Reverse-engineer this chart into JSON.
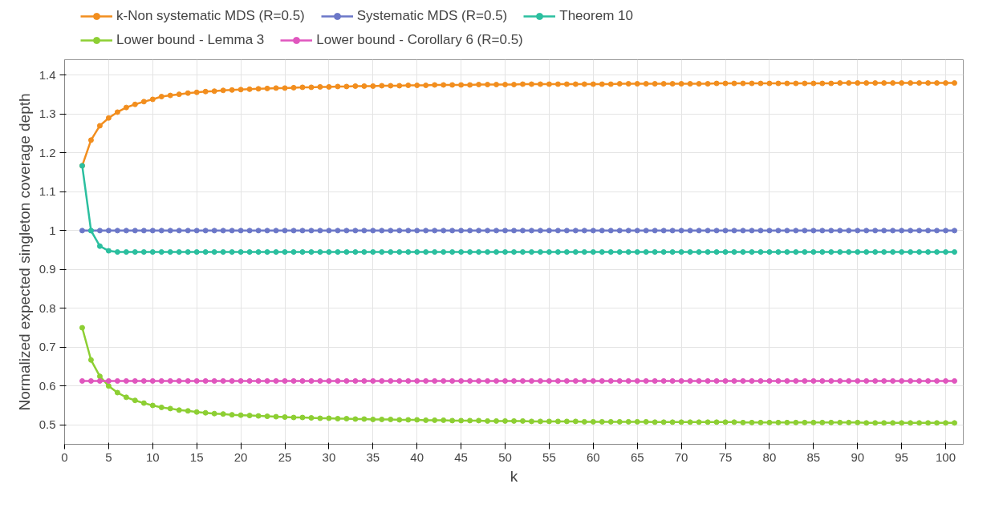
{
  "chart_data": {
    "type": "line",
    "xlabel": "k",
    "ylabel": "Normalized expected singleton coverage depth",
    "x": [
      2,
      3,
      4,
      5,
      6,
      7,
      8,
      9,
      10,
      11,
      12,
      13,
      14,
      15,
      16,
      17,
      18,
      19,
      20,
      21,
      22,
      23,
      24,
      25,
      26,
      27,
      28,
      29,
      30,
      31,
      32,
      33,
      34,
      35,
      36,
      37,
      38,
      39,
      40,
      41,
      42,
      43,
      44,
      45,
      46,
      47,
      48,
      49,
      50,
      51,
      52,
      53,
      54,
      55,
      56,
      57,
      58,
      59,
      60,
      61,
      62,
      63,
      64,
      65,
      66,
      67,
      68,
      69,
      70,
      71,
      72,
      73,
      74,
      75,
      76,
      77,
      78,
      79,
      80,
      81,
      82,
      83,
      84,
      85,
      86,
      87,
      88,
      89,
      90,
      91,
      92,
      93,
      94,
      95,
      96,
      97,
      98,
      99,
      100,
      101
    ],
    "xlim": [
      0,
      102
    ],
    "xticks": [
      0,
      5,
      10,
      15,
      20,
      25,
      30,
      35,
      40,
      45,
      50,
      55,
      60,
      65,
      70,
      75,
      80,
      85,
      90,
      95,
      100
    ],
    "ylim": [
      0.45,
      1.44
    ],
    "yticks": [
      0.5,
      0.6,
      0.7,
      0.8,
      0.9,
      {
        "value": 1,
        "label": "1"
      },
      1.1,
      1.2,
      1.3,
      1.4
    ],
    "grid": true,
    "legend": "top",
    "marker": "circle",
    "line_style": "solid",
    "series": [
      {
        "name": "k-Non systematic MDS (R=0.5)",
        "color": "#f28e1e",
        "values": [
          1.167,
          1.233,
          1.27,
          1.29,
          1.305,
          1.317,
          1.325,
          1.332,
          1.338,
          1.345,
          1.348,
          1.351,
          1.354,
          1.356,
          1.358,
          1.359,
          1.361,
          1.362,
          1.363,
          1.364,
          1.365,
          1.366,
          1.367,
          1.367,
          1.368,
          1.369,
          1.369,
          1.37,
          1.37,
          1.371,
          1.371,
          1.372,
          1.372,
          1.372,
          1.373,
          1.373,
          1.373,
          1.374,
          1.374,
          1.374,
          1.375,
          1.375,
          1.375,
          1.375,
          1.375,
          1.376,
          1.376,
          1.376,
          1.376,
          1.376,
          1.377,
          1.377,
          1.377,
          1.377,
          1.377,
          1.377,
          1.377,
          1.377,
          1.377,
          1.377,
          1.377,
          1.378,
          1.378,
          1.378,
          1.378,
          1.378,
          1.378,
          1.378,
          1.378,
          1.378,
          1.378,
          1.378,
          1.379,
          1.379,
          1.379,
          1.379,
          1.379,
          1.379,
          1.379,
          1.379,
          1.379,
          1.379,
          1.379,
          1.379,
          1.379,
          1.379,
          1.38,
          1.38,
          1.38,
          1.38,
          1.38,
          1.38,
          1.38,
          1.38,
          1.38,
          1.38,
          1.38,
          1.38,
          1.38,
          1.38
        ]
      },
      {
        "name": "Systematic MDS (R=0.5)",
        "color": "#6b77c8",
        "values": [
          1,
          1,
          1,
          1,
          1,
          1,
          1,
          1,
          1,
          1,
          1,
          1,
          1,
          1,
          1,
          1,
          1,
          1,
          1,
          1,
          1,
          1,
          1,
          1,
          1,
          1,
          1,
          1,
          1,
          1,
          1,
          1,
          1,
          1,
          1,
          1,
          1,
          1,
          1,
          1,
          1,
          1,
          1,
          1,
          1,
          1,
          1,
          1,
          1,
          1,
          1,
          1,
          1,
          1,
          1,
          1,
          1,
          1,
          1,
          1,
          1,
          1,
          1,
          1,
          1,
          1,
          1,
          1,
          1,
          1,
          1,
          1,
          1,
          1,
          1,
          1,
          1,
          1,
          1,
          1,
          1,
          1,
          1,
          1,
          1,
          1,
          1,
          1,
          1,
          1,
          1,
          1,
          1,
          1,
          1,
          1,
          1,
          1,
          1,
          1
        ]
      },
      {
        "name": "Theorem 10",
        "color": "#2bbf9f",
        "values": [
          1.167,
          1,
          0.96,
          0.948,
          0.945,
          0.945,
          0.945,
          0.945,
          0.945,
          0.945,
          0.945,
          0.945,
          0.945,
          0.945,
          0.945,
          0.945,
          0.945,
          0.945,
          0.945,
          0.945,
          0.945,
          0.945,
          0.945,
          0.945,
          0.945,
          0.945,
          0.945,
          0.945,
          0.945,
          0.945,
          0.945,
          0.945,
          0.945,
          0.945,
          0.945,
          0.945,
          0.945,
          0.945,
          0.945,
          0.945,
          0.945,
          0.945,
          0.945,
          0.945,
          0.945,
          0.945,
          0.945,
          0.945,
          0.945,
          0.945,
          0.945,
          0.945,
          0.945,
          0.945,
          0.945,
          0.945,
          0.945,
          0.945,
          0.945,
          0.945,
          0.945,
          0.945,
          0.945,
          0.945,
          0.945,
          0.945,
          0.945,
          0.945,
          0.945,
          0.945,
          0.945,
          0.945,
          0.945,
          0.945,
          0.945,
          0.945,
          0.945,
          0.945,
          0.945,
          0.945,
          0.945,
          0.945,
          0.945,
          0.945,
          0.945,
          0.945,
          0.945,
          0.945,
          0.945,
          0.945,
          0.945,
          0.945,
          0.945,
          0.945,
          0.945,
          0.945,
          0.945,
          0.945,
          0.945,
          0.945
        ]
      },
      {
        "name": "Lower bound - Lemma 3",
        "color": "#8dcf33",
        "values": [
          0.75,
          0.667,
          0.625,
          0.6,
          0.583,
          0.571,
          0.563,
          0.556,
          0.55,
          0.545,
          0.542,
          0.538,
          0.536,
          0.533,
          0.531,
          0.529,
          0.528,
          0.526,
          0.525,
          0.524,
          0.523,
          0.522,
          0.521,
          0.52,
          0.519,
          0.519,
          0.518,
          0.517,
          0.517,
          0.516,
          0.516,
          0.515,
          0.515,
          0.514,
          0.514,
          0.514,
          0.513,
          0.513,
          0.513,
          0.512,
          0.512,
          0.512,
          0.511,
          0.511,
          0.511,
          0.511,
          0.51,
          0.51,
          0.51,
          0.51,
          0.51,
          0.509,
          0.509,
          0.509,
          0.509,
          0.509,
          0.509,
          0.508,
          0.508,
          0.508,
          0.508,
          0.508,
          0.508,
          0.508,
          0.508,
          0.507,
          0.507,
          0.507,
          0.507,
          0.507,
          0.507,
          0.507,
          0.507,
          0.507,
          0.507,
          0.506,
          0.506,
          0.506,
          0.506,
          0.506,
          0.506,
          0.506,
          0.506,
          0.506,
          0.506,
          0.506,
          0.506,
          0.506,
          0.506,
          0.505,
          0.505,
          0.505,
          0.505,
          0.505,
          0.505,
          0.505,
          0.505,
          0.505,
          0.505,
          0.505
        ]
      },
      {
        "name": "Lower bound - Corollary 6 (R=0.5)",
        "color": "#e056be",
        "values": [
          0.613,
          0.613,
          0.613,
          0.613,
          0.613,
          0.613,
          0.613,
          0.613,
          0.613,
          0.613,
          0.613,
          0.613,
          0.613,
          0.613,
          0.613,
          0.613,
          0.613,
          0.613,
          0.613,
          0.613,
          0.613,
          0.613,
          0.613,
          0.613,
          0.613,
          0.613,
          0.613,
          0.613,
          0.613,
          0.613,
          0.613,
          0.613,
          0.613,
          0.613,
          0.613,
          0.613,
          0.613,
          0.613,
          0.613,
          0.613,
          0.613,
          0.613,
          0.613,
          0.613,
          0.613,
          0.613,
          0.613,
          0.613,
          0.613,
          0.613,
          0.613,
          0.613,
          0.613,
          0.613,
          0.613,
          0.613,
          0.613,
          0.613,
          0.613,
          0.613,
          0.613,
          0.613,
          0.613,
          0.613,
          0.613,
          0.613,
          0.613,
          0.613,
          0.613,
          0.613,
          0.613,
          0.613,
          0.613,
          0.613,
          0.613,
          0.613,
          0.613,
          0.613,
          0.613,
          0.613,
          0.613,
          0.613,
          0.613,
          0.613,
          0.613,
          0.613,
          0.613,
          0.613,
          0.613,
          0.613,
          0.613,
          0.613,
          0.613,
          0.613,
          0.613,
          0.613,
          0.613,
          0.613,
          0.613,
          0.613
        ]
      }
    ]
  }
}
